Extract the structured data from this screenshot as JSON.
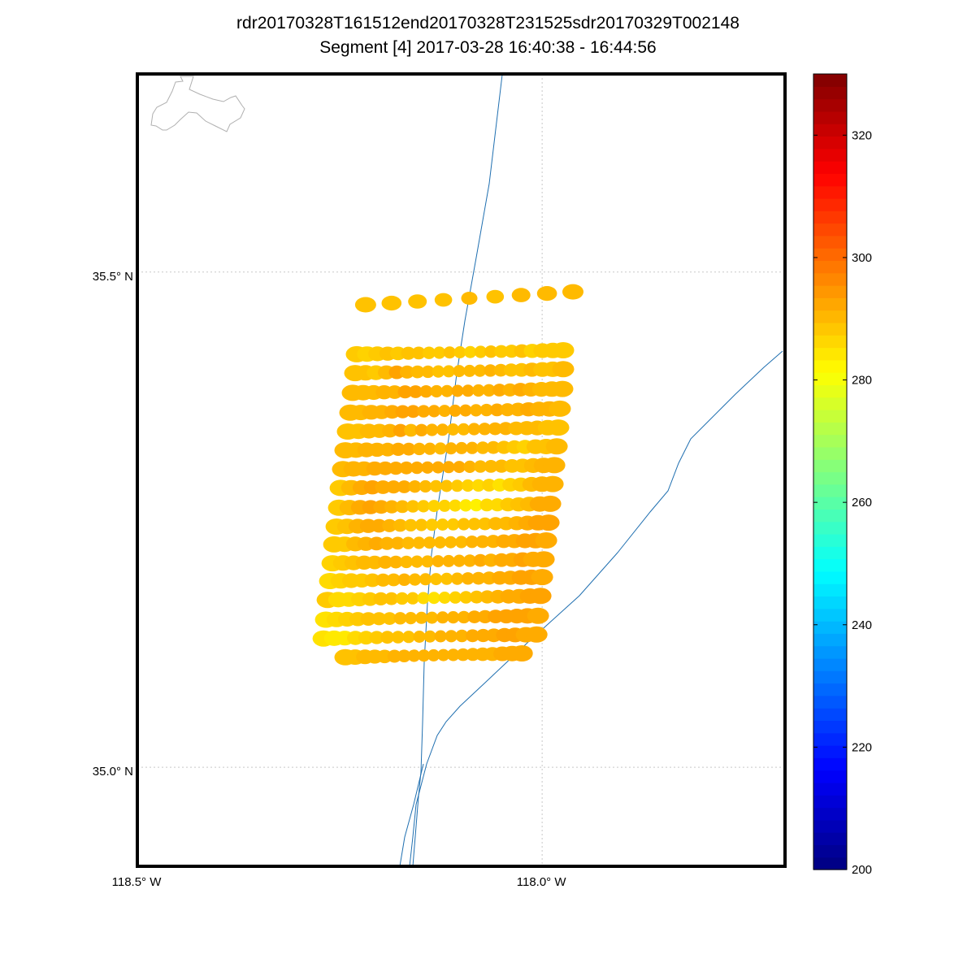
{
  "title": "rdr20170328T161512end20170328T231525sdr20170329T002148",
  "subtitle": "Segment [4] 2017-03-28 16:40:38 - 16:44:56",
  "map": {
    "lon_range": [
      -118.5,
      -117.7
    ],
    "lat_range": [
      34.9,
      35.7
    ],
    "lon_ticks": [
      {
        "value": -118.5,
        "label": "118.5° W"
      },
      {
        "value": -118.0,
        "label": "118.0° W"
      }
    ],
    "lat_ticks": [
      {
        "value": 35.5,
        "label": "35.5° N"
      },
      {
        "value": 35.0,
        "label": "35.0° N"
      }
    ],
    "grid": "dotted",
    "coastline_color": "#b0b0b0",
    "road_color": "#1f6fb0"
  },
  "colorbar": {
    "min": 200,
    "max": 330,
    "ticks": [
      200,
      220,
      240,
      260,
      280,
      300,
      320
    ],
    "colormap": "jet",
    "placement": "right"
  },
  "chart_data": {
    "type": "scatter",
    "description_values": "brightness temperature footprints",
    "scan_rows": [
      {
        "lat_start": 35.467,
        "lat_end": 35.48,
        "lon_start": -118.218,
        "lon_end": -117.962,
        "values": [
          289,
          289,
          289,
          289,
          290,
          289,
          290,
          290,
          290
        ]
      },
      {
        "lat_start": 35.417,
        "lat_end": 35.421,
        "lon_start": -118.229,
        "lon_end": -117.974,
        "values": [
          288,
          287,
          288,
          289,
          288,
          289,
          289,
          288,
          288,
          289,
          288,
          287,
          288,
          289,
          288,
          288,
          289,
          287,
          288,
          288,
          288
        ]
      },
      {
        "lat_start": 35.398,
        "lat_end": 35.402,
        "lon_start": -118.231,
        "lon_end": -117.974,
        "values": [
          289,
          289,
          288,
          290,
          293,
          291,
          290,
          290,
          289,
          289,
          290,
          290,
          290,
          291,
          290,
          289,
          289,
          290,
          289,
          289,
          290
        ]
      },
      {
        "lat_start": 35.378,
        "lat_end": 35.382,
        "lon_start": -118.234,
        "lon_end": -117.975,
        "values": [
          290,
          290,
          290,
          291,
          291,
          293,
          293,
          292,
          291,
          291,
          292,
          292,
          291,
          291,
          292,
          291,
          292,
          291,
          290,
          290,
          290
        ]
      },
      {
        "lat_start": 35.358,
        "lat_end": 35.362,
        "lon_start": -118.237,
        "lon_end": -117.978,
        "values": [
          290,
          290,
          291,
          291,
          292,
          293,
          293,
          292,
          292,
          291,
          292,
          292,
          291,
          291,
          292,
          291,
          291,
          292,
          291,
          291,
          290
        ]
      },
      {
        "lat_start": 35.339,
        "lat_end": 35.343,
        "lon_start": -118.24,
        "lon_end": -117.98,
        "values": [
          289,
          289,
          290,
          290,
          291,
          293,
          290,
          292,
          291,
          291,
          290,
          290,
          291,
          291,
          291,
          291,
          290,
          290,
          290,
          289,
          289
        ]
      },
      {
        "lat_start": 35.32,
        "lat_end": 35.324,
        "lon_start": -118.243,
        "lon_end": -117.982,
        "values": [
          290,
          290,
          291,
          291,
          291,
          292,
          292,
          291,
          291,
          290,
          291,
          291,
          291,
          290,
          290,
          289,
          288,
          287,
          289,
          289,
          290
        ]
      },
      {
        "lat_start": 35.301,
        "lat_end": 35.305,
        "lon_start": -118.246,
        "lon_end": -117.985,
        "values": [
          290,
          291,
          291,
          292,
          292,
          292,
          292,
          292,
          292,
          292,
          292,
          292,
          291,
          290,
          290,
          290,
          289,
          289,
          290,
          291,
          291
        ]
      },
      {
        "lat_start": 35.282,
        "lat_end": 35.286,
        "lon_start": -118.249,
        "lon_end": -117.987,
        "values": [
          288,
          290,
          292,
          293,
          292,
          292,
          292,
          291,
          290,
          289,
          289,
          288,
          287,
          286,
          287,
          285,
          287,
          288,
          290,
          291,
          291
        ]
      },
      {
        "lat_start": 35.262,
        "lat_end": 35.266,
        "lon_start": -118.251,
        "lon_end": -117.99,
        "values": [
          288,
          290,
          292,
          293,
          292,
          291,
          290,
          289,
          288,
          287,
          287,
          286,
          284,
          283,
          286,
          286,
          288,
          289,
          290,
          292,
          292
        ]
      },
      {
        "lat_start": 35.243,
        "lat_end": 35.247,
        "lon_start": -118.254,
        "lon_end": -117.992,
        "values": [
          288,
          289,
          291,
          292,
          292,
          291,
          290,
          289,
          289,
          288,
          288,
          288,
          289,
          289,
          289,
          290,
          290,
          291,
          292,
          293,
          293
        ]
      },
      {
        "lat_start": 35.225,
        "lat_end": 35.229,
        "lon_start": -118.257,
        "lon_end": -117.995,
        "values": [
          288,
          288,
          290,
          291,
          292,
          291,
          291,
          290,
          290,
          290,
          290,
          290,
          290,
          291,
          291,
          291,
          292,
          292,
          293,
          293,
          292
        ]
      },
      {
        "lat_start": 35.206,
        "lat_end": 35.21,
        "lon_start": -118.259,
        "lon_end": -117.998,
        "values": [
          287,
          288,
          289,
          290,
          290,
          291,
          291,
          290,
          290,
          290,
          291,
          291,
          291,
          291,
          292,
          291,
          292,
          292,
          293,
          292,
          292
        ]
      },
      {
        "lat_start": 35.188,
        "lat_end": 35.192,
        "lon_start": -118.262,
        "lon_end": -118.0,
        "values": [
          286,
          287,
          288,
          288,
          289,
          290,
          290,
          291,
          290,
          290,
          289,
          289,
          290,
          291,
          291,
          291,
          292,
          292,
          293,
          293,
          292
        ]
      },
      {
        "lat_start": 35.169,
        "lat_end": 35.173,
        "lon_start": -118.265,
        "lon_end": -118.002,
        "values": [
          288,
          286,
          286,
          287,
          288,
          289,
          289,
          288,
          288,
          286,
          285,
          286,
          287,
          288,
          289,
          290,
          291,
          292,
          292,
          293,
          293
        ]
      },
      {
        "lat_start": 35.149,
        "lat_end": 35.153,
        "lon_start": -118.267,
        "lon_end": -118.005,
        "values": [
          285,
          286,
          287,
          288,
          289,
          289,
          289,
          290,
          290,
          290,
          290,
          291,
          291,
          291,
          292,
          292,
          293,
          293,
          293,
          293,
          292
        ]
      },
      {
        "lat_start": 35.13,
        "lat_end": 35.134,
        "lon_start": -118.27,
        "lon_end": -118.007,
        "values": [
          285,
          284,
          284,
          286,
          287,
          288,
          289,
          289,
          289,
          290,
          290,
          291,
          291,
          291,
          292,
          292,
          292,
          293,
          293,
          292,
          292
        ]
      },
      {
        "lat_start": 35.111,
        "lat_end": 35.115,
        "lon_start": -118.243,
        "lon_end": -118.025,
        "values": [
          289,
          289,
          290,
          290,
          290,
          291,
          291,
          291,
          291,
          291,
          291,
          291,
          291,
          291,
          291,
          291,
          292,
          292,
          292
        ]
      }
    ]
  }
}
